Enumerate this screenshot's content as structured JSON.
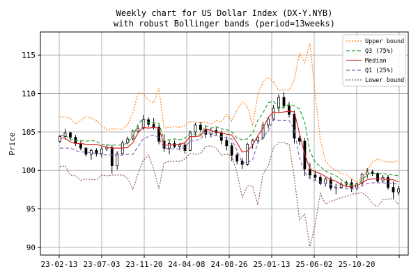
{
  "chart_data": {
    "type": "line",
    "title": "Weekly chart for US Dollar Index (DX-Y.NYB)",
    "subtitle": "with robust Bollinger bands (period=13weeks)",
    "xlabel": "",
    "ylabel": "Price",
    "ylim": [
      89,
      118
    ],
    "yticks": [
      90,
      95,
      100,
      105,
      110,
      115
    ],
    "x_tick_labels": [
      "23-02-13",
      "23-07-03",
      "23-11-20",
      "24-04-08",
      "24-08-26",
      "25-01-13",
      "25-06-02",
      "25-10-20"
    ],
    "grid": true,
    "legend_position": "top-right",
    "legend": [
      {
        "name": "Upper bound",
        "color": "#ff7f0e",
        "style": "dotted"
      },
      {
        "name": "Q3 (75%)",
        "color": "#2ca02c",
        "style": "dashed"
      },
      {
        "name": "Median",
        "color": "#d62728",
        "style": "solid"
      },
      {
        "name": "Q1 (25%)",
        "color": "#9467bd",
        "style": "dashed"
      },
      {
        "name": "Lower bound",
        "color": "#8c564b",
        "style": "dotted"
      }
    ],
    "series": [
      {
        "name": "Upper bound",
        "values": [
          107.0,
          106.9,
          106.8,
          106.0,
          106.5,
          107.0,
          106.8,
          106.5,
          105.8,
          105.3,
          105.4,
          105.4,
          105.3,
          106.0,
          107.4,
          110.1,
          110.0,
          109.1,
          108.8,
          110.7,
          105.5,
          105.6,
          105.7,
          105.6,
          105.8,
          106.4,
          106.3,
          106.2,
          106.3,
          106.0,
          106.5,
          106.3,
          107.3,
          106.4,
          107.9,
          108.9,
          108.3,
          105.8,
          109.9,
          111.5,
          112.1,
          111.5,
          110.4,
          110.5,
          110.4,
          111.8,
          115.2,
          114.0,
          116.5,
          110.0,
          104.0,
          101.2,
          100.4,
          100.0,
          99.6,
          99.5,
          98.9,
          98.5,
          99.0,
          100.0,
          101.1,
          101.5,
          101.2,
          101.1,
          101.1,
          101.3
        ]
      },
      {
        "name": "Q3 (75%)",
        "values": [
          104.5,
          104.6,
          104.0,
          103.9,
          103.9,
          103.8,
          103.9,
          103.8,
          103.4,
          103.3,
          103.3,
          103.3,
          103.3,
          103.6,
          104.4,
          106.0,
          106.8,
          106.2,
          106.2,
          106.1,
          103.9,
          104.0,
          104.1,
          104.0,
          104.2,
          104.8,
          104.7,
          104.7,
          105.8,
          105.5,
          105.7,
          105.4,
          105.3,
          105.0,
          104.2,
          104.0,
          104.1,
          104.9,
          106.5,
          107.5,
          108.8,
          109.0,
          108.2,
          108.2,
          108.6,
          108.4,
          108.0,
          106.3,
          102.5,
          101.1,
          100.5,
          99.9,
          99.6,
          99.3,
          98.8,
          98.3,
          98.1,
          98.1,
          98.7,
          99.5,
          99.6,
          99.6,
          99.6,
          99.5,
          99.4,
          99.3
        ]
      },
      {
        "name": "Median",
        "values": [
          104.2,
          104.2,
          103.7,
          103.5,
          103.5,
          103.4,
          103.4,
          103.4,
          103.2,
          103.0,
          102.9,
          102.9,
          102.9,
          103.0,
          103.6,
          104.9,
          105.6,
          105.5,
          105.6,
          105.5,
          103.3,
          103.3,
          103.4,
          103.4,
          103.6,
          104.4,
          104.4,
          104.5,
          105.4,
          105.2,
          105.0,
          104.9,
          104.7,
          104.6,
          103.6,
          102.4,
          102.5,
          103.3,
          104.5,
          105.5,
          106.9,
          107.6,
          107.5,
          107.6,
          107.7,
          107.6,
          104.8,
          102.1,
          100.2,
          99.8,
          99.6,
          99.2,
          98.8,
          98.6,
          98.2,
          97.9,
          97.9,
          98.0,
          98.4,
          98.8,
          98.9,
          98.9,
          98.9,
          98.8,
          98.8,
          98.5
        ]
      },
      {
        "name": "Q1 (25%)",
        "values": [
          102.9,
          102.9,
          102.9,
          102.6,
          102.4,
          102.4,
          102.3,
          102.2,
          102.1,
          102.0,
          102.0,
          102.0,
          102.0,
          102.1,
          102.1,
          103.1,
          104.1,
          104.4,
          104.6,
          104.3,
          102.9,
          102.8,
          102.8,
          102.8,
          103.0,
          103.8,
          103.9,
          104.1,
          105.0,
          104.8,
          104.5,
          104.4,
          104.2,
          104.1,
          102.6,
          101.0,
          101.0,
          101.4,
          103.6,
          104.3,
          105.2,
          106.6,
          106.5,
          106.5,
          106.5,
          105.3,
          101.6,
          99.8,
          98.9,
          98.7,
          98.5,
          98.3,
          98.2,
          97.8,
          97.7,
          97.6,
          97.6,
          97.6,
          98.0,
          98.3,
          98.4,
          98.4,
          98.4,
          98.3,
          98.3,
          98.2
        ]
      },
      {
        "name": "Lower bound",
        "values": [
          100.5,
          100.6,
          99.4,
          99.3,
          98.7,
          98.9,
          98.8,
          98.8,
          99.4,
          99.3,
          99.4,
          99.4,
          99.4,
          99.0,
          97.5,
          99.6,
          101.3,
          102.0,
          100.2,
          97.6,
          101.0,
          101.2,
          101.2,
          101.2,
          101.5,
          102.2,
          102.1,
          102.2,
          103.1,
          103.2,
          102.9,
          102.0,
          102.1,
          101.9,
          99.7,
          96.5,
          98.0,
          98.0,
          95.5,
          99.6,
          100.6,
          103.0,
          103.6,
          103.6,
          103.4,
          99.0,
          93.6,
          94.3,
          90.1,
          93.0,
          97.0,
          95.6,
          96.0,
          96.2,
          96.5,
          96.6,
          96.9,
          97.0,
          97.1,
          96.6,
          95.7,
          95.3,
          96.2,
          96.3,
          96.3,
          95.6
        ]
      }
    ],
    "candles": [
      [
        103.8,
        104.6,
        103.6,
        104.4
      ],
      [
        104.4,
        105.4,
        104.0,
        104.9
      ],
      [
        104.9,
        105.0,
        103.9,
        104.3
      ],
      [
        104.3,
        104.6,
        103.2,
        103.5
      ],
      [
        103.5,
        103.9,
        102.6,
        102.9
      ],
      [
        102.9,
        103.0,
        101.8,
        102.1
      ],
      [
        102.1,
        102.8,
        101.4,
        102.6
      ],
      [
        102.6,
        102.9,
        101.8,
        102.2
      ],
      [
        102.2,
        103.1,
        101.7,
        102.8
      ],
      [
        102.8,
        103.4,
        102.5,
        103.0
      ],
      [
        103.0,
        103.3,
        99.6,
        100.6
      ],
      [
        100.6,
        102.5,
        100.1,
        102.2
      ],
      [
        102.2,
        103.9,
        102.0,
        103.6
      ],
      [
        103.6,
        104.4,
        103.4,
        104.1
      ],
      [
        104.1,
        105.3,
        103.9,
        105.1
      ],
      [
        105.1,
        105.8,
        104.9,
        105.5
      ],
      [
        105.5,
        107.2,
        105.3,
        106.6
      ],
      [
        106.6,
        106.9,
        105.6,
        106.0
      ],
      [
        106.0,
        106.8,
        105.3,
        105.6
      ],
      [
        105.6,
        105.9,
        103.4,
        103.8
      ],
      [
        103.8,
        104.7,
        102.4,
        102.9
      ],
      [
        102.9,
        103.9,
        102.1,
        103.5
      ],
      [
        103.5,
        103.9,
        102.9,
        103.1
      ],
      [
        103.1,
        103.6,
        102.6,
        103.3
      ],
      [
        103.3,
        103.7,
        102.2,
        102.6
      ],
      [
        102.6,
        105.2,
        102.5,
        105.0
      ],
      [
        105.0,
        106.2,
        104.5,
        105.9
      ],
      [
        105.9,
        106.3,
        105.0,
        105.3
      ],
      [
        105.3,
        105.9,
        104.2,
        104.7
      ],
      [
        104.7,
        105.5,
        104.3,
        105.2
      ],
      [
        105.2,
        105.6,
        104.5,
        104.9
      ],
      [
        104.9,
        105.2,
        103.4,
        103.9
      ],
      [
        103.9,
        104.4,
        102.6,
        103.2
      ],
      [
        103.2,
        103.6,
        101.2,
        102.0
      ],
      [
        102.0,
        102.3,
        100.8,
        101.2
      ],
      [
        101.2,
        101.6,
        100.2,
        100.8
      ],
      [
        100.8,
        103.6,
        100.6,
        103.4
      ],
      [
        103.4,
        104.1,
        102.8,
        103.9
      ],
      [
        103.9,
        104.5,
        103.6,
        104.3
      ],
      [
        104.3,
        106.3,
        104.0,
        105.9
      ],
      [
        105.9,
        107.0,
        105.5,
        106.7
      ],
      [
        106.7,
        108.5,
        106.4,
        108.1
      ],
      [
        108.1,
        109.9,
        107.5,
        109.5
      ],
      [
        109.5,
        110.2,
        108.0,
        108.4
      ],
      [
        108.4,
        108.9,
        106.9,
        107.3
      ],
      [
        107.3,
        107.8,
        103.5,
        104.2
      ],
      [
        104.2,
        104.5,
        103.3,
        103.8
      ],
      [
        103.8,
        104.2,
        99.3,
        100.2
      ],
      [
        100.2,
        101.0,
        98.9,
        99.4
      ],
      [
        99.4,
        100.0,
        98.6,
        99.1
      ],
      [
        99.1,
        99.4,
        98.1,
        98.3
      ],
      [
        98.3,
        99.1,
        97.9,
        98.9
      ],
      [
        98.9,
        99.2,
        97.4,
        97.7
      ],
      [
        97.7,
        98.3,
        96.9,
        97.8
      ],
      [
        97.8,
        98.5,
        97.6,
        98.2
      ],
      [
        98.2,
        98.7,
        97.8,
        98.4
      ],
      [
        98.4,
        98.9,
        97.2,
        97.7
      ],
      [
        97.7,
        98.4,
        97.4,
        98.3
      ],
      [
        98.3,
        99.7,
        98.0,
        99.5
      ],
      [
        99.5,
        100.3,
        99.0,
        99.8
      ],
      [
        99.8,
        100.1,
        99.3,
        99.6
      ],
      [
        99.6,
        99.8,
        98.3,
        98.6
      ],
      [
        98.6,
        99.4,
        98.4,
        99.1
      ],
      [
        99.1,
        99.4,
        97.5,
        97.8
      ],
      [
        97.8,
        98.6,
        96.3,
        97.2
      ],
      [
        97.2,
        98.0,
        96.8,
        97.6
      ]
    ]
  }
}
